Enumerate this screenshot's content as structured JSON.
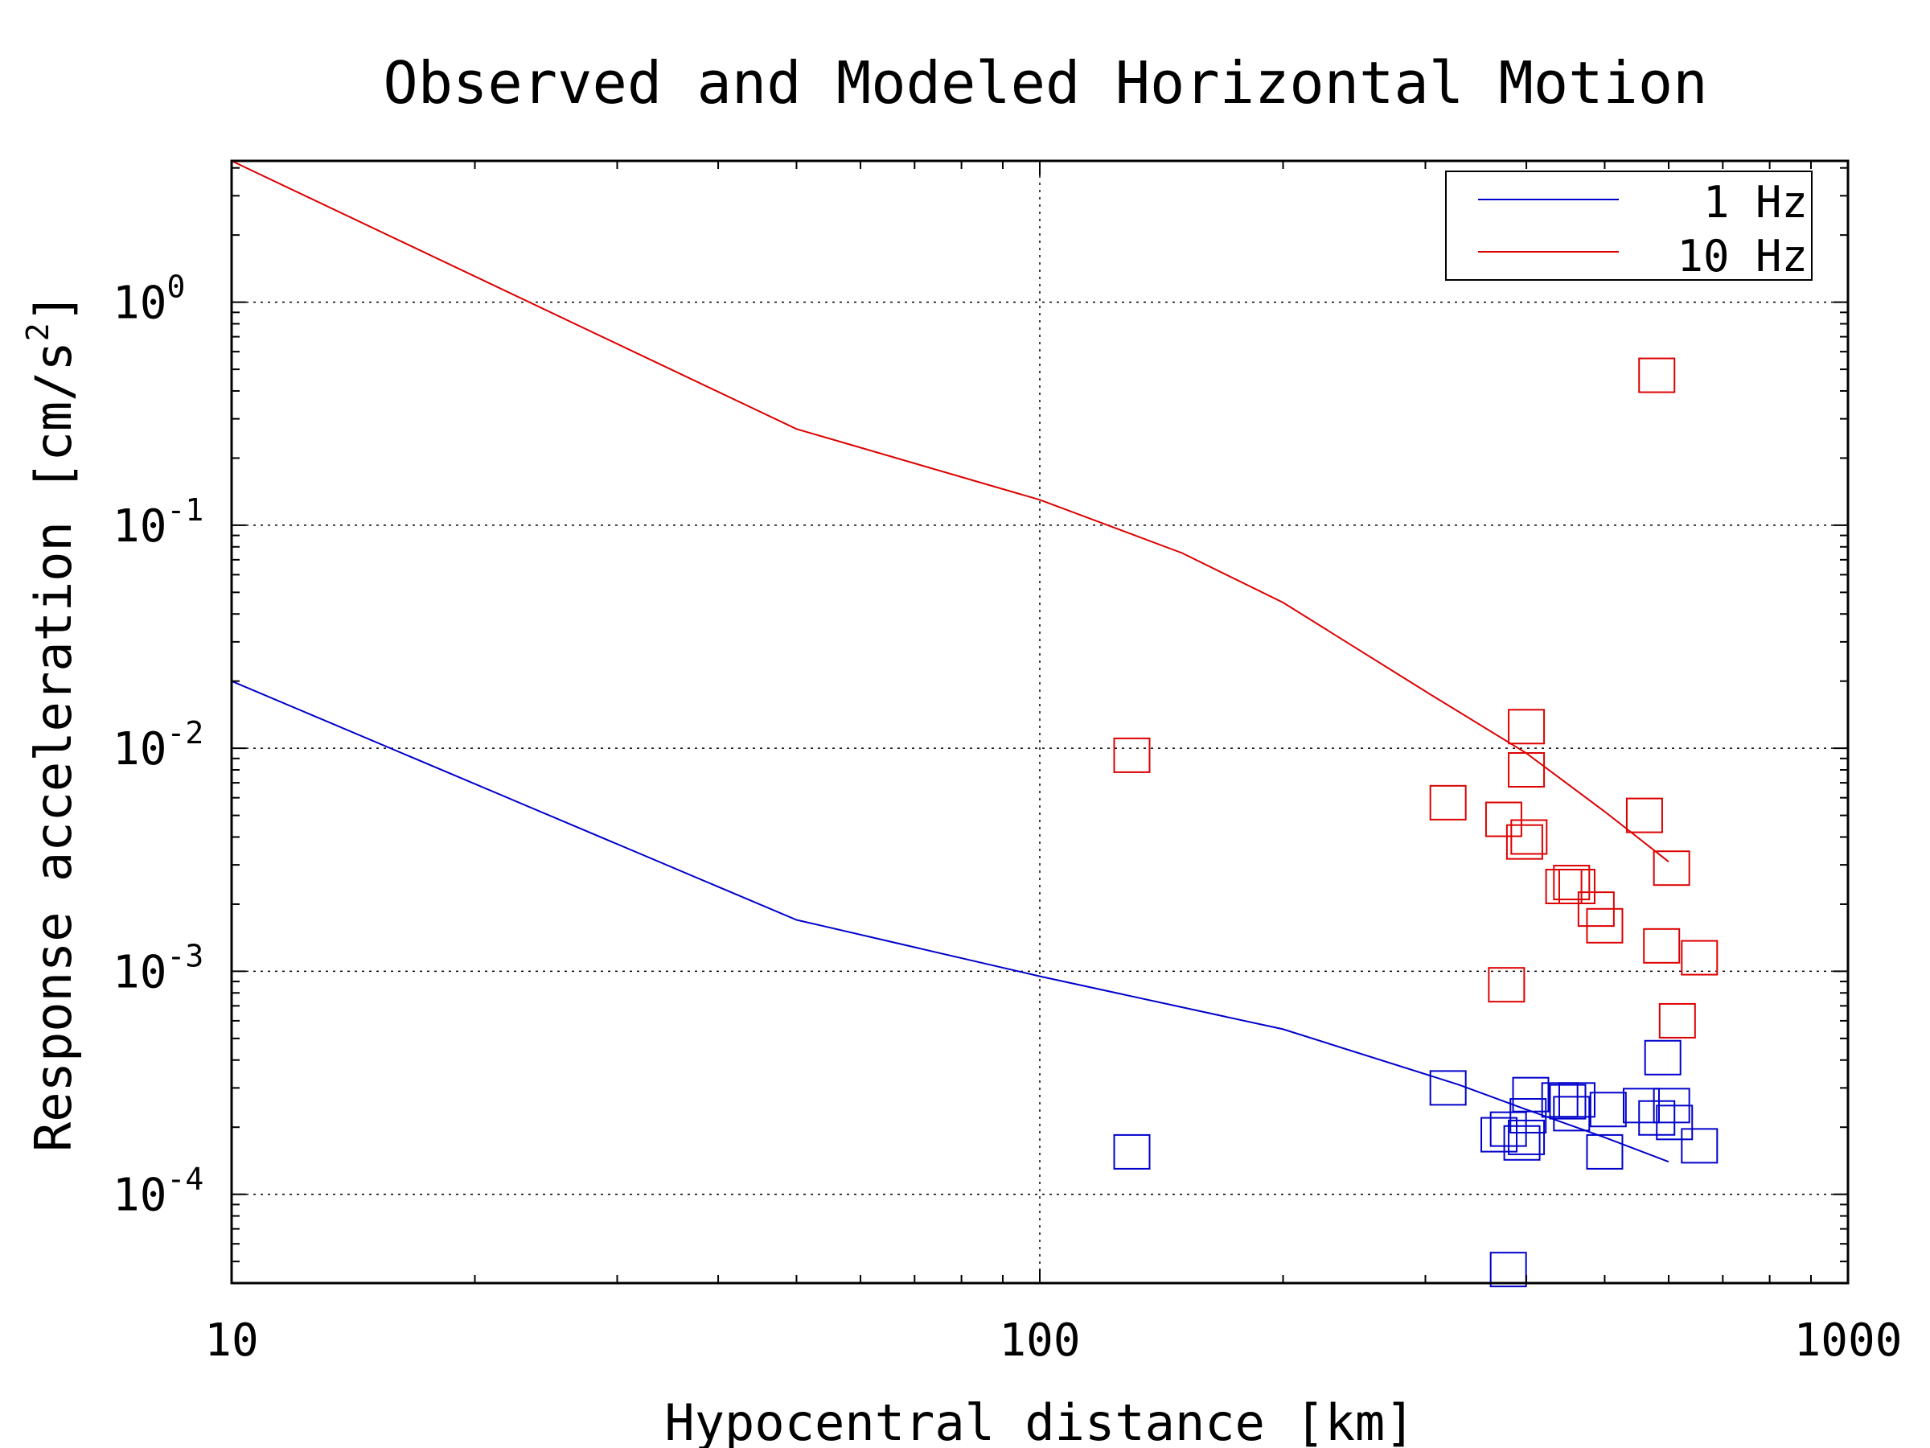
{
  "chart_data": {
    "type": "scatter",
    "title": "Observed and Modeled Horizontal Motion",
    "xlabel": "Hypocentral distance [km]",
    "ylabel_main": "Response acceleration [cm/s",
    "ylabel_sup": "2",
    "ylabel_close": "]",
    "xscale": "log",
    "yscale": "log",
    "xlim": [
      10,
      1000
    ],
    "ylim": [
      4e-05,
      4.3
    ],
    "grid": "dotted",
    "x_ticks": [
      {
        "value": 10,
        "label": "10"
      },
      {
        "value": 100,
        "label": "100"
      },
      {
        "value": 1000,
        "label": "1000"
      }
    ],
    "y_ticks": [
      {
        "value": 0.0001,
        "base": "10",
        "exp": "-4"
      },
      {
        "value": 0.001,
        "base": "10",
        "exp": "-3"
      },
      {
        "value": 0.01,
        "base": "10",
        "exp": "-2"
      },
      {
        "value": 0.1,
        "base": "10",
        "exp": "-1"
      },
      {
        "value": 1,
        "base": "10",
        "exp": "0"
      }
    ],
    "legend": {
      "placement": "top-right",
      "entries": [
        {
          "label": "1 Hz",
          "color": "#0000cc"
        },
        {
          "label": "10 Hz",
          "color": "#dd0000"
        }
      ]
    },
    "series": [
      {
        "kind": "line",
        "name": "1 Hz",
        "color": "#0000cc",
        "x": [
          10,
          50,
          100,
          200,
          330,
          400,
          500,
          600
        ],
        "y": [
          0.02,
          0.0017,
          0.00095,
          0.00055,
          0.00031,
          0.00024,
          0.00018,
          0.00014
        ]
      },
      {
        "kind": "line",
        "name": "10 Hz",
        "color": "#dd0000",
        "x": [
          10,
          50,
          100,
          150,
          200,
          300,
          400,
          500,
          600
        ],
        "y": [
          4.3,
          0.27,
          0.13,
          0.075,
          0.045,
          0.018,
          0.0095,
          0.0052,
          0.0031
        ]
      },
      {
        "kind": "markers",
        "color": "#dd0000",
        "x": [
          130,
          580,
          400,
          320,
          375,
          400,
          398,
          403,
          445,
          455,
          462,
          500,
          488,
          560,
          605,
          588,
          655,
          378,
          615
        ],
        "y": [
          0.0093,
          0.47,
          0.0125,
          0.0057,
          0.0048,
          0.008,
          0.0038,
          0.004,
          0.0024,
          0.0025,
          0.0024,
          0.0016,
          0.0019,
          0.005,
          0.0029,
          0.0013,
          0.00115,
          0.00087,
          0.0006
        ]
      },
      {
        "kind": "markers",
        "color": "#0000cc",
        "x": [
          130,
          320,
          370,
          380,
          395,
          400,
          402,
          405,
          440,
          450,
          455,
          462,
          500,
          505,
          555,
          580,
          590,
          605,
          610,
          655,
          380
        ],
        "y": [
          0.000155,
          0.0003,
          0.000185,
          0.000196,
          0.00017,
          0.00018,
          0.000225,
          0.00028,
          0.000265,
          0.00026,
          0.00023,
          0.000265,
          0.000155,
          0.00024,
          0.00025,
          0.00022,
          0.00041,
          0.00025,
          0.00021,
          0.000165,
          4.6e-05
        ]
      }
    ]
  }
}
